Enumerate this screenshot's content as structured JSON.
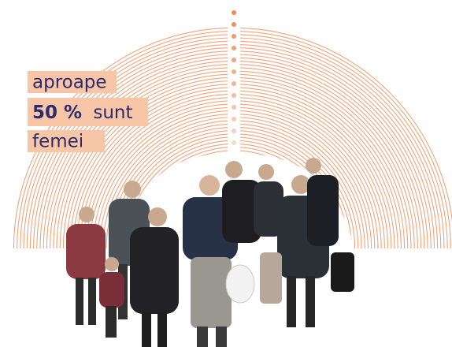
{
  "labels": {
    "line1": "aproape",
    "highlight": "50 %",
    "line2": "sunt",
    "line3": "femei"
  }
}
